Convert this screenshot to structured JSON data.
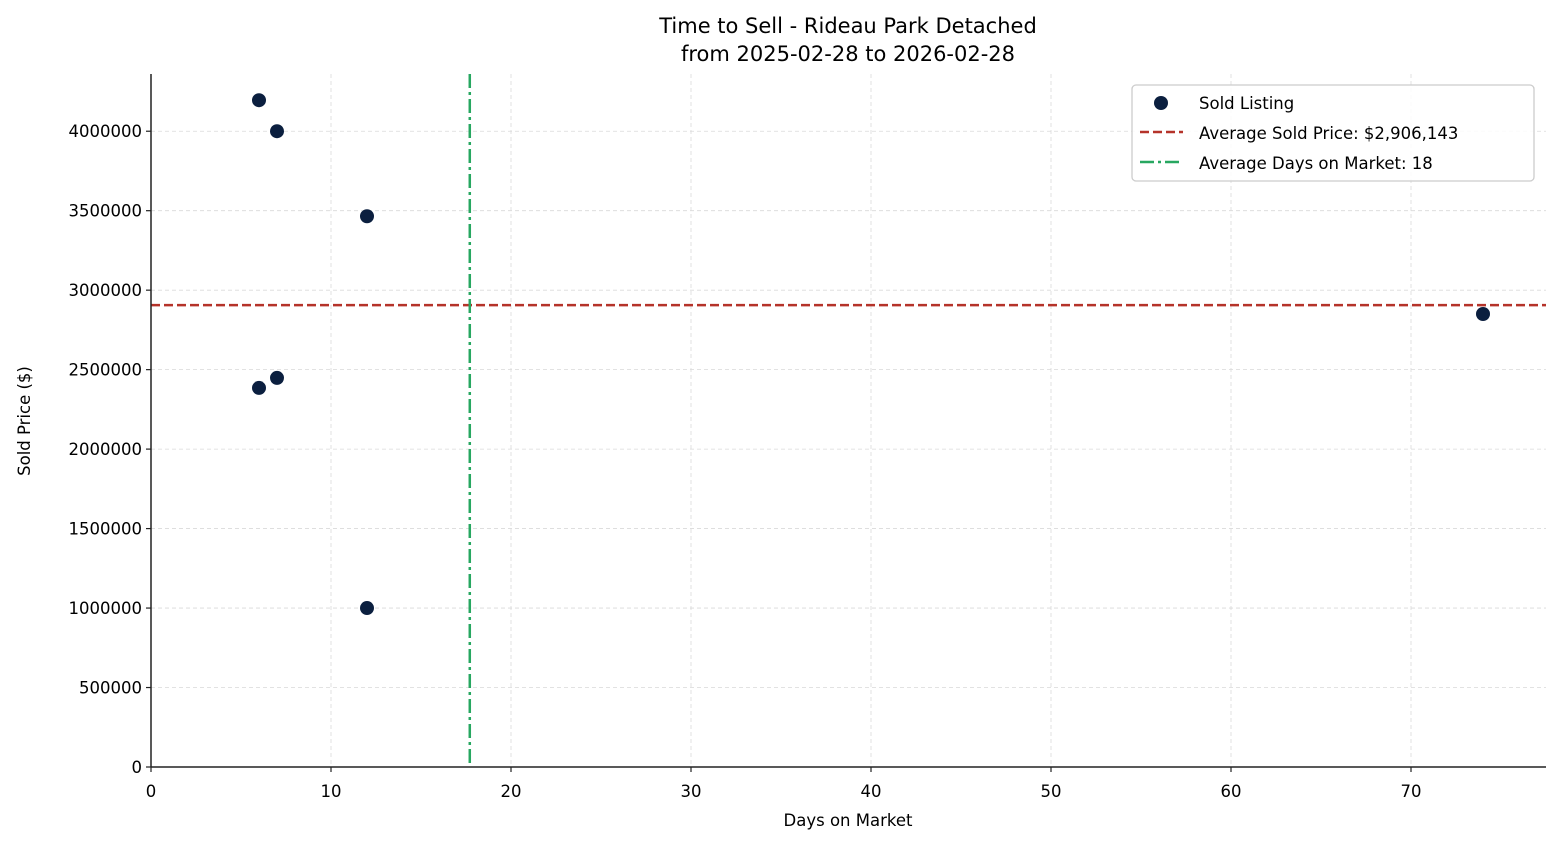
{
  "chart_data": {
    "type": "scatter",
    "title": "Time to Sell - Rideau Park Detached",
    "subtitle": "from 2025-02-28 to 2026-02-28",
    "xlabel": "Days on Market",
    "ylabel": "Sold Price ($)",
    "xlim": [
      0,
      77.5
    ],
    "ylim": [
      0,
      4360000
    ],
    "x_ticks": [
      0,
      10,
      20,
      30,
      40,
      50,
      60,
      70
    ],
    "y_ticks": [
      0,
      500000,
      1000000,
      1500000,
      2000000,
      2500000,
      3000000,
      3500000,
      4000000
    ],
    "grid": true,
    "legend_position": "upper right",
    "series": [
      {
        "name": "Sold Listing",
        "type": "scatter",
        "color": "#0b1f3f",
        "points": [
          {
            "x": 6,
            "y": 4195000
          },
          {
            "x": 7,
            "y": 4000000
          },
          {
            "x": 12,
            "y": 3465000
          },
          {
            "x": 6,
            "y": 2385000
          },
          {
            "x": 7,
            "y": 2448000
          },
          {
            "x": 12,
            "y": 1000000
          },
          {
            "x": 74,
            "y": 2850000
          }
        ]
      }
    ],
    "reference_lines": [
      {
        "name": "Average Sold Price: $2,906,143",
        "orientation": "horizontal",
        "value": 2906143,
        "style": "dashed",
        "color": "#b5332a"
      },
      {
        "name": "Average Days on Market: 18",
        "orientation": "vertical",
        "value": 17.71,
        "style": "dashdot",
        "color": "#27a760"
      }
    ]
  },
  "legend": {
    "items": [
      {
        "label": "Sold Listing"
      },
      {
        "label": "Average Sold Price: $2,906,143"
      },
      {
        "label": "Average Days on Market: 18"
      }
    ]
  }
}
